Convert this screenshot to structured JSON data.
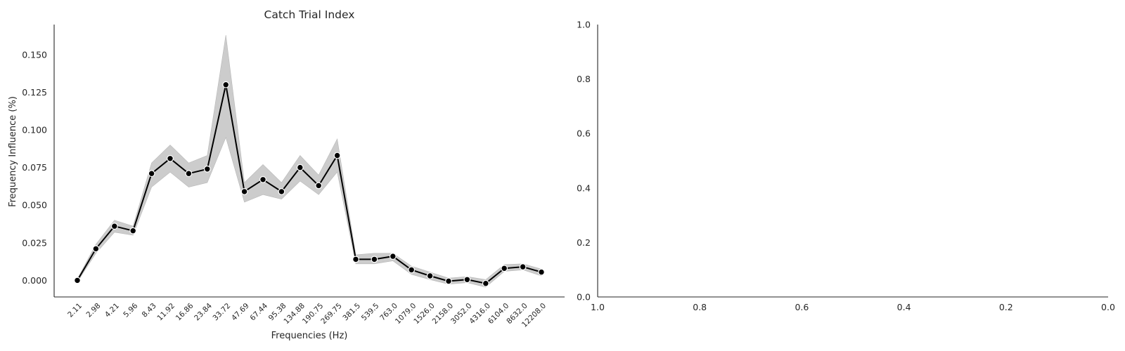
{
  "chart_data": [
    {
      "type": "line",
      "title": "Catch Trial Index",
      "xlabel": "Frequencies (Hz)",
      "ylabel": "Frequency Influence (%)",
      "categories": [
        "2.11",
        "2.98",
        "4.21",
        "5.96",
        "8.43",
        "11.92",
        "16.86",
        "23.84",
        "33.72",
        "47.69",
        "67.44",
        "95.38",
        "134.88",
        "190.75",
        "269.75",
        "381.5",
        "539.5",
        "763.0",
        "1079.0",
        "1526.0",
        "2158.0",
        "3052.0",
        "4316.0",
        "6104.0",
        "8632.0",
        "12208.0"
      ],
      "yticks": [
        "0.000",
        "0.025",
        "0.050",
        "0.075",
        "0.100",
        "0.125",
        "0.150"
      ],
      "ylim": [
        -0.011,
        0.17
      ],
      "series": [
        {
          "values": [
            0.0,
            0.021,
            0.036,
            0.033,
            0.071,
            0.081,
            0.071,
            0.074,
            0.13,
            0.059,
            0.067,
            0.059,
            0.075,
            0.063,
            0.083,
            0.014,
            0.014,
            0.016,
            0.007,
            0.003,
            -0.0005,
            0.0005,
            -0.002,
            0.008,
            0.009,
            0.0055
          ],
          "ci_lower": [
            -0.001,
            0.018,
            0.032,
            0.03,
            0.062,
            0.072,
            0.062,
            0.065,
            0.095,
            0.052,
            0.057,
            0.054,
            0.066,
            0.057,
            0.072,
            0.011,
            0.011,
            0.013,
            0.004,
            0.0005,
            -0.0025,
            -0.0015,
            -0.0045,
            0.006,
            0.007,
            0.003
          ],
          "ci_upper": [
            0.001,
            0.024,
            0.04,
            0.036,
            0.078,
            0.09,
            0.078,
            0.083,
            0.163,
            0.065,
            0.077,
            0.065,
            0.083,
            0.07,
            0.094,
            0.017,
            0.018,
            0.018,
            0.0095,
            0.0055,
            0.0015,
            0.0025,
            0.0005,
            0.0105,
            0.011,
            0.0075
          ],
          "line_color": "#000000",
          "band_color": "#cccccc"
        }
      ],
      "grid": false
    },
    {
      "type": "line",
      "title": "",
      "xlabel": "",
      "ylabel": "",
      "xticks": [
        "1.0",
        "0.8",
        "0.6",
        "0.4",
        "0.2",
        "0.0"
      ],
      "yticks": [
        "0.0",
        "0.2",
        "0.4",
        "0.6",
        "0.8",
        "1.0"
      ],
      "xlim": [
        1.0,
        0.0
      ],
      "ylim": [
        0.0,
        1.0
      ],
      "series": [],
      "grid": false
    }
  ]
}
